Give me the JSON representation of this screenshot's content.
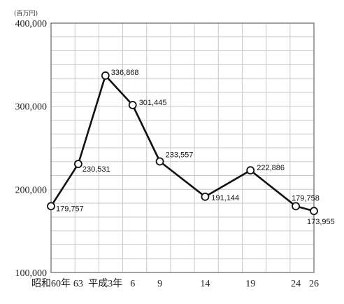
{
  "chart_data": {
    "type": "line",
    "unit_label": "(百万円)",
    "categories": [
      "昭和60年",
      "63",
      "平成3年",
      "6",
      "9",
      "14",
      "19",
      "24",
      "26"
    ],
    "x": [
      1985,
      1988,
      1991,
      1994,
      1997,
      2002,
      2007,
      2012,
      2014
    ],
    "values": [
      179757,
      230531,
      336868,
      301445,
      233557,
      191144,
      222886,
      179758,
      173955
    ],
    "value_labels": [
      "179,757",
      "230,531",
      "336,868",
      "301,445",
      "233,557",
      "191,144",
      "222,886",
      "179,758",
      "173,955"
    ],
    "ylim": [
      100000,
      400000
    ],
    "yticks": [
      100000,
      200000,
      300000,
      400000
    ],
    "ytick_labels": [
      "100,000",
      "200,000",
      "300,000",
      "400,000"
    ],
    "grid": true,
    "legend": "none",
    "colors": {
      "line": "#111111",
      "marker_fill": "#ffffff",
      "grid": "#c8c8c8"
    }
  }
}
